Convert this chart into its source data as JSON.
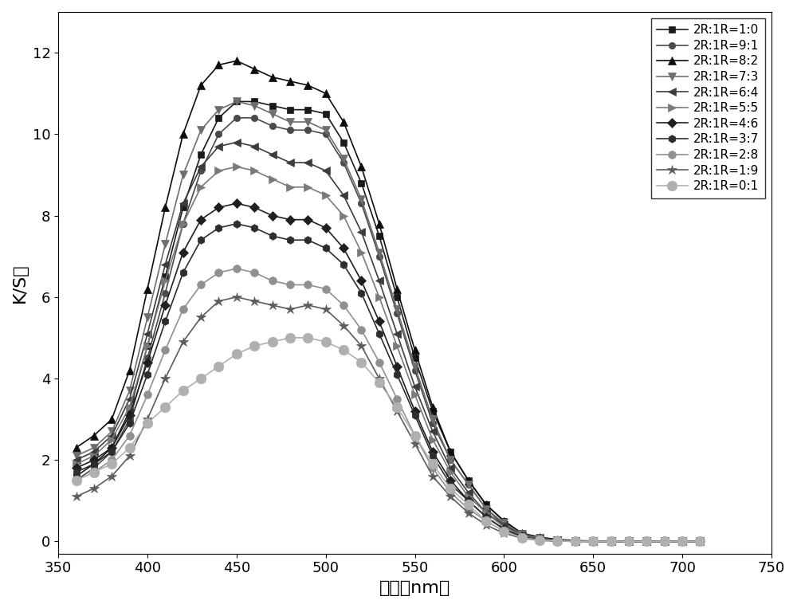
{
  "xlabel": "波长（nm）",
  "ylabel": "K/S値",
  "xlim": [
    350,
    750
  ],
  "ylim": [
    -0.3,
    13
  ],
  "xticks": [
    350,
    400,
    450,
    500,
    550,
    600,
    650,
    700,
    750
  ],
  "yticks": [
    0,
    2,
    4,
    6,
    8,
    10,
    12
  ],
  "wavelengths": [
    360,
    370,
    380,
    390,
    400,
    410,
    420,
    430,
    440,
    450,
    460,
    470,
    480,
    490,
    500,
    510,
    520,
    530,
    540,
    550,
    560,
    570,
    580,
    590,
    600,
    610,
    620,
    630,
    640,
    650,
    660,
    670,
    680,
    690,
    700,
    710
  ],
  "series": [
    {
      "label": "2R:1R=1:0",
      "marker": "s",
      "color": "#1a1a1a",
      "markersize": 6,
      "linewidth": 1.2,
      "markerfacecolor": "#1a1a1a",
      "values": [
        1.6,
        1.9,
        2.3,
        3.2,
        4.8,
        6.5,
        8.2,
        9.5,
        10.4,
        10.8,
        10.8,
        10.7,
        10.6,
        10.6,
        10.5,
        9.8,
        8.8,
        7.5,
        6.0,
        4.5,
        3.2,
        2.2,
        1.5,
        0.9,
        0.5,
        0.2,
        0.1,
        0.05,
        0.02,
        0.01,
        0.0,
        0.0,
        0.0,
        0.0,
        0.0,
        0.0
      ]
    },
    {
      "label": "2R:1R=9:1",
      "marker": "o",
      "color": "#4a4a4a",
      "markersize": 6,
      "linewidth": 1.2,
      "markerfacecolor": "#4a4a4a",
      "values": [
        1.5,
        1.8,
        2.2,
        3.0,
        4.5,
        6.1,
        7.8,
        9.1,
        10.0,
        10.4,
        10.4,
        10.2,
        10.1,
        10.1,
        10.0,
        9.3,
        8.3,
        7.0,
        5.6,
        4.2,
        2.9,
        2.0,
        1.4,
        0.8,
        0.4,
        0.18,
        0.08,
        0.03,
        0.01,
        0.0,
        0.0,
        0.0,
        0.0,
        0.0,
        0.0,
        0.0
      ]
    },
    {
      "label": "2R:1R=8:2",
      "marker": "^",
      "color": "#0d0d0d",
      "markersize": 7,
      "linewidth": 1.2,
      "markerfacecolor": "#0d0d0d",
      "values": [
        2.3,
        2.6,
        3.0,
        4.2,
        6.2,
        8.2,
        10.0,
        11.2,
        11.7,
        11.8,
        11.6,
        11.4,
        11.3,
        11.2,
        11.0,
        10.3,
        9.2,
        7.8,
        6.2,
        4.7,
        3.3,
        2.2,
        1.5,
        0.9,
        0.5,
        0.2,
        0.1,
        0.04,
        0.01,
        0.0,
        0.0,
        0.0,
        0.0,
        0.0,
        0.0,
        0.0
      ]
    },
    {
      "label": "2R:1R=7:3",
      "marker": "v",
      "color": "#6e6e6e",
      "markersize": 7,
      "linewidth": 1.2,
      "markerfacecolor": "#6e6e6e",
      "values": [
        2.1,
        2.3,
        2.7,
        3.7,
        5.5,
        7.3,
        9.0,
        10.1,
        10.6,
        10.8,
        10.7,
        10.5,
        10.3,
        10.3,
        10.1,
        9.4,
        8.4,
        7.1,
        5.7,
        4.3,
        3.0,
        2.0,
        1.4,
        0.8,
        0.45,
        0.18,
        0.08,
        0.03,
        0.01,
        0.0,
        0.0,
        0.0,
        0.0,
        0.0,
        0.0,
        0.0
      ]
    },
    {
      "label": "2R:1R=6:4",
      "marker": "<",
      "color": "#3c3c3c",
      "markersize": 7,
      "linewidth": 1.2,
      "markerfacecolor": "#3c3c3c",
      "values": [
        2.0,
        2.2,
        2.6,
        3.5,
        5.1,
        6.8,
        8.3,
        9.2,
        9.7,
        9.8,
        9.7,
        9.5,
        9.3,
        9.3,
        9.1,
        8.5,
        7.6,
        6.4,
        5.1,
        3.8,
        2.7,
        1.8,
        1.2,
        0.7,
        0.4,
        0.15,
        0.06,
        0.02,
        0.01,
        0.0,
        0.0,
        0.0,
        0.0,
        0.0,
        0.0,
        0.0
      ]
    },
    {
      "label": "2R:1R=5:5",
      "marker": ">",
      "color": "#7a7a7a",
      "markersize": 7,
      "linewidth": 1.2,
      "markerfacecolor": "#7a7a7a",
      "values": [
        1.9,
        2.1,
        2.5,
        3.3,
        4.8,
        6.4,
        7.8,
        8.7,
        9.1,
        9.2,
        9.1,
        8.9,
        8.7,
        8.7,
        8.5,
        8.0,
        7.1,
        6.0,
        4.8,
        3.6,
        2.5,
        1.7,
        1.1,
        0.7,
        0.35,
        0.14,
        0.05,
        0.02,
        0.01,
        0.0,
        0.0,
        0.0,
        0.0,
        0.0,
        0.0,
        0.0
      ]
    },
    {
      "label": "2R:1R=4:6",
      "marker": "D",
      "color": "#1f1f1f",
      "markersize": 6,
      "linewidth": 1.2,
      "markerfacecolor": "#1f1f1f",
      "values": [
        1.8,
        2.0,
        2.3,
        3.1,
        4.4,
        5.8,
        7.1,
        7.9,
        8.2,
        8.3,
        8.2,
        8.0,
        7.9,
        7.9,
        7.7,
        7.2,
        6.4,
        5.4,
        4.3,
        3.2,
        2.2,
        1.5,
        1.0,
        0.6,
        0.3,
        0.12,
        0.04,
        0.01,
        0.0,
        0.0,
        0.0,
        0.0,
        0.0,
        0.0,
        0.0,
        0.0
      ]
    },
    {
      "label": "2R:1R=3:7",
      "marker": "h",
      "color": "#2d2d2d",
      "markersize": 7,
      "linewidth": 1.2,
      "markerfacecolor": "#2d2d2d",
      "values": [
        1.7,
        1.9,
        2.2,
        2.9,
        4.1,
        5.4,
        6.6,
        7.4,
        7.7,
        7.8,
        7.7,
        7.5,
        7.4,
        7.4,
        7.2,
        6.8,
        6.1,
        5.1,
        4.1,
        3.1,
        2.1,
        1.4,
        1.0,
        0.6,
        0.3,
        0.11,
        0.04,
        0.01,
        0.0,
        0.0,
        0.0,
        0.0,
        0.0,
        0.0,
        0.0,
        0.0
      ]
    },
    {
      "label": "2R:1R=2:8",
      "marker": "o",
      "color": "#909090",
      "markersize": 7,
      "linewidth": 1.2,
      "markerfacecolor": "#909090",
      "values": [
        1.5,
        1.7,
        2.0,
        2.6,
        3.6,
        4.7,
        5.7,
        6.3,
        6.6,
        6.7,
        6.6,
        6.4,
        6.3,
        6.3,
        6.2,
        5.8,
        5.2,
        4.4,
        3.5,
        2.6,
        1.8,
        1.2,
        0.8,
        0.5,
        0.25,
        0.09,
        0.03,
        0.01,
        0.0,
        0.0,
        0.0,
        0.0,
        0.0,
        0.0,
        0.0,
        0.0
      ]
    },
    {
      "label": "2R:1R=1:9",
      "marker": "*",
      "color": "#5c5c5c",
      "markersize": 9,
      "linewidth": 1.2,
      "markerfacecolor": "#5c5c5c",
      "values": [
        1.1,
        1.3,
        1.6,
        2.1,
        3.0,
        4.0,
        4.9,
        5.5,
        5.9,
        6.0,
        5.9,
        5.8,
        5.7,
        5.8,
        5.7,
        5.3,
        4.8,
        4.0,
        3.2,
        2.4,
        1.6,
        1.1,
        0.7,
        0.4,
        0.2,
        0.08,
        0.02,
        0.01,
        0.0,
        0.0,
        0.0,
        0.0,
        0.0,
        0.0,
        0.0,
        0.0
      ]
    },
    {
      "label": "2R:1R=0:1",
      "marker": "o",
      "color": "#b0b0b0",
      "markersize": 9,
      "linewidth": 1.2,
      "markerfacecolor": "#b0b0b0",
      "values": [
        1.5,
        1.7,
        1.9,
        2.3,
        2.9,
        3.3,
        3.7,
        4.0,
        4.3,
        4.6,
        4.8,
        4.9,
        5.0,
        5.0,
        4.9,
        4.7,
        4.4,
        3.9,
        3.3,
        2.6,
        1.9,
        1.3,
        0.9,
        0.5,
        0.25,
        0.09,
        0.03,
        0.01,
        0.0,
        0.0,
        0.0,
        0.0,
        0.0,
        0.0,
        0.0,
        0.0
      ]
    }
  ]
}
